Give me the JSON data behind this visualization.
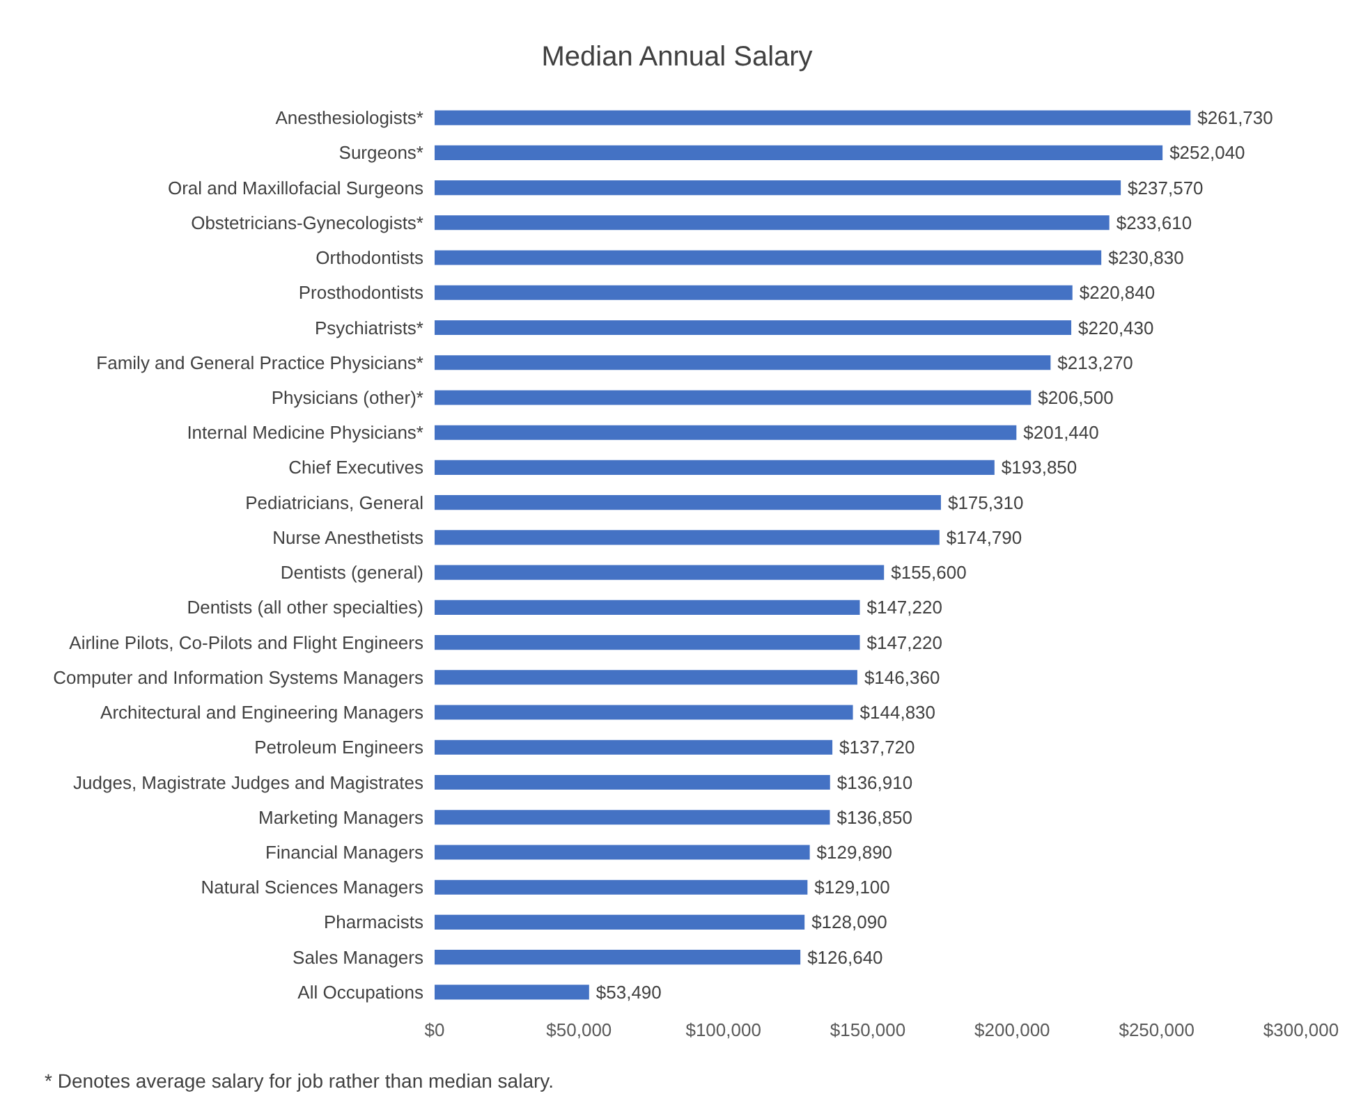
{
  "chart_data": {
    "type": "bar",
    "orientation": "horizontal",
    "title": "Median Annual Salary",
    "categories": [
      "Anesthesiologists*",
      "Surgeons*",
      "Oral and Maxillofacial Surgeons",
      "Obstetricians-Gynecologists*",
      "Orthodontists",
      "Prosthodontists",
      "Psychiatrists*",
      "Family and General Practice Physicians*",
      "Physicians (other)*",
      "Internal Medicine Physicians*",
      "Chief Executives",
      "Pediatricians, General",
      "Nurse Anesthetists",
      "Dentists (general)",
      "Dentists (all other specialties)",
      "Airline Pilots, Co-Pilots and Flight Engineers",
      "Computer and Information Systems Managers",
      "Architectural and Engineering Managers",
      "Petroleum Engineers",
      "Judges, Magistrate Judges and Magistrates",
      "Marketing Managers",
      "Financial Managers",
      "Natural Sciences Managers",
      "Pharmacists",
      "Sales Managers",
      "All Occupations"
    ],
    "values": [
      261730,
      252040,
      237570,
      233610,
      230830,
      220840,
      220430,
      213270,
      206500,
      201440,
      193850,
      175310,
      174790,
      155600,
      147220,
      147220,
      146360,
      144830,
      137720,
      136910,
      136850,
      129890,
      129100,
      128090,
      126640,
      53490
    ],
    "value_labels": [
      "$261,730",
      "$252,040",
      "$237,570",
      "$233,610",
      "$230,830",
      "$220,840",
      "$220,430",
      "$213,270",
      "$206,500",
      "$201,440",
      "$193,850",
      "$175,310",
      "$174,790",
      "$155,600",
      "$147,220",
      "$147,220",
      "$146,360",
      "$144,830",
      "$137,720",
      "$136,910",
      "$136,850",
      "$129,890",
      "$129,100",
      "$128,090",
      "$126,640",
      "$53,490"
    ],
    "color": "#4472c4",
    "xlim": [
      0,
      300000
    ],
    "xticks": [
      {
        "value": 0,
        "label": "$0"
      },
      {
        "value": 50000,
        "label": "$50,000"
      },
      {
        "value": 100000,
        "label": "$100,000"
      },
      {
        "value": 150000,
        "label": "$150,000"
      },
      {
        "value": 200000,
        "label": "$200,000"
      },
      {
        "value": 250000,
        "label": "$250,000"
      },
      {
        "value": 300000,
        "label": "$300,000"
      }
    ],
    "grid": false,
    "annotations": [
      "* Denotes average salary for job rather than median salary."
    ]
  }
}
